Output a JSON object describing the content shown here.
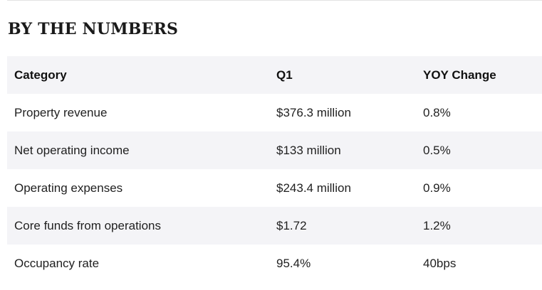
{
  "section": {
    "title": "BY THE NUMBERS"
  },
  "table": {
    "headers": {
      "category": "Category",
      "q1": "Q1",
      "yoy": "YOY Change"
    },
    "rows": [
      {
        "category": "Property revenue",
        "q1": "$376.3 million",
        "yoy": "0.8%"
      },
      {
        "category": "Net operating income",
        "q1": "$133 million",
        "yoy": "0.5%"
      },
      {
        "category": "Operating expenses",
        "q1": "$243.4 million",
        "yoy": "0.9%"
      },
      {
        "category": "Core funds from operations",
        "q1": "$1.72",
        "yoy": "1.2%"
      },
      {
        "category": "Occupancy rate",
        "q1": "95.4%",
        "yoy": "40bps"
      }
    ]
  }
}
